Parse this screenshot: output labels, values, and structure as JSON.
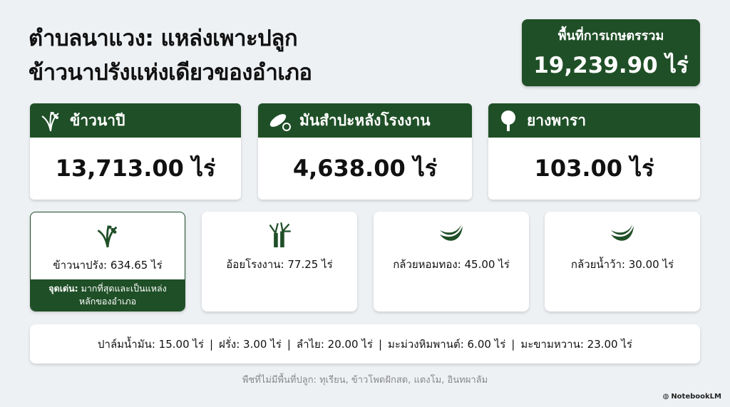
{
  "title": {
    "line1": "ตำบลนาแวง: แหล่งเพาะปลูก",
    "line2": "ข้าวนาปรังแห่งเดียวของอำเภอ"
  },
  "total": {
    "label": "พื้นที่การเกษตรรวม",
    "value": "19,239.90 ไร่"
  },
  "main_crops": [
    {
      "name": "ข้าวนาปี",
      "value": "13,713.00 ไร่",
      "icon": "rice-icon"
    },
    {
      "name": "มันสำปะหลังโรงงาน",
      "value": "4,638.00 ไร่",
      "icon": "cassava-icon"
    },
    {
      "name": "ยางพารา",
      "value": "103.00 ไร่",
      "icon": "tree-icon"
    }
  ],
  "minor_crops": [
    {
      "label": "ข้าวนาปรัง: 634.65 ไร่",
      "icon": "rice-icon",
      "highlight_label": "จุดเด่น:",
      "highlight_text": "มากที่สุดและเป็นแหล่ง",
      "highlight_text2": "หลักของอำเภอ"
    },
    {
      "label": "อ้อยโรงงาน: 77.25 ไร่",
      "icon": "sugarcane-icon"
    },
    {
      "label": "กล้วยหอมทอง: 45.00 ไร่",
      "icon": "banana-icon"
    },
    {
      "label": "กล้วยน้ำว้า: 30.00 ไร่",
      "icon": "banana-icon"
    }
  ],
  "other_crops": [
    "ปาล์มน้ำมัน: 15.00 ไร่",
    "ฝรั่ง: 3.00 ไร่",
    "ลำไย: 20.00 ไร่",
    "มะม่วงหิมพานต์: 6.00 ไร่",
    "มะขามหวาน: 23.00 ไร่"
  ],
  "separator": "|",
  "footnote": "พืชที่ไม่มีพื้นที่ปลูก: ทุเรียน, ข้าวโพดฝักสด, แตงโม, อินทผาลัม",
  "brand": "NotebookLM",
  "colors": {
    "accent": "#1f4f27",
    "background": "#eef1f4"
  }
}
